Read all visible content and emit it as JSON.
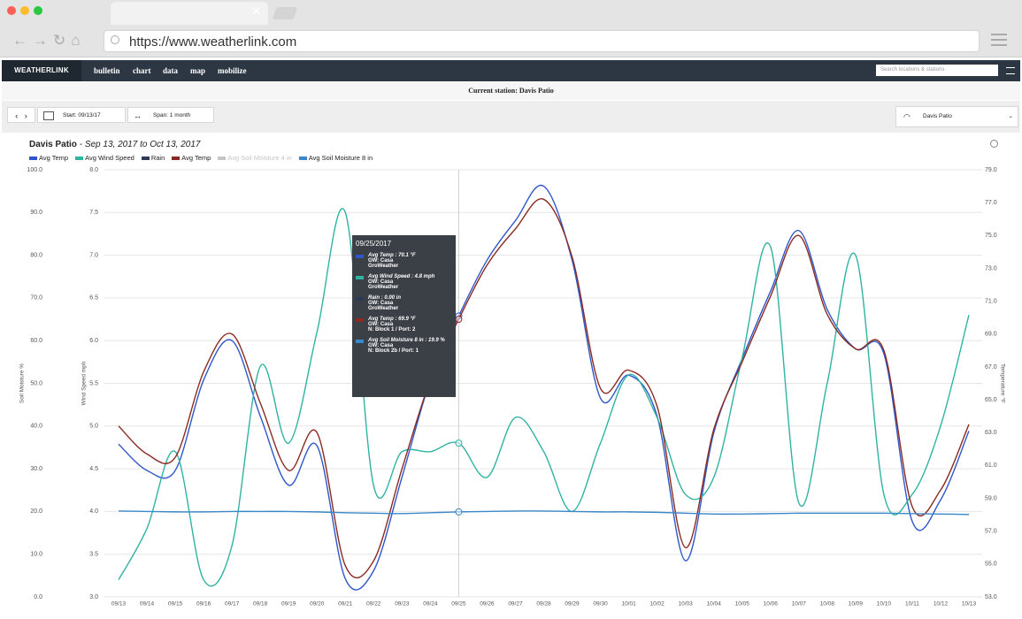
{
  "browser": {
    "url": "https://www.weatherlink.com"
  },
  "nav": {
    "brand": "WEATHERLINK",
    "links": [
      "bulletin",
      "chart",
      "data",
      "map",
      "mobilize"
    ],
    "search_placeholder": "Search locations & stations"
  },
  "station_bar": "Current station: Davis Patio",
  "controls": {
    "start": "Start: 09/13/17",
    "span": "Span: 1 month",
    "station": "Davis Patio"
  },
  "chart_data": {
    "type": "line",
    "title": "Davis Patio",
    "subtitle": "Sep 13, 2017 to Oct 13, 2017",
    "categories": [
      "09/13",
      "09/14",
      "09/15",
      "09/16",
      "09/17",
      "09/18",
      "09/19",
      "09/20",
      "09/21",
      "09/22",
      "09/23",
      "09/24",
      "09/25",
      "09/26",
      "09/27",
      "09/28",
      "09/29",
      "09/30",
      "10/01",
      "10/02",
      "10/03",
      "10/04",
      "10/05",
      "10/06",
      "10/07",
      "10/08",
      "10/09",
      "10/10",
      "10/11",
      "10/12",
      "10/13"
    ],
    "axes": [
      {
        "label": "Soil Moisture %",
        "side": "left-outer",
        "lim": [
          0,
          100
        ],
        "ticks": [
          {
            "value": 0,
            "label": "0.0"
          },
          {
            "value": 10,
            "label": "10.0"
          },
          {
            "value": 20,
            "label": "20.0"
          },
          {
            "value": 30,
            "label": "30.0"
          },
          {
            "value": 40,
            "label": "40.0"
          },
          {
            "value": 50,
            "label": "50.0"
          },
          {
            "value": 60,
            "label": "60.0"
          },
          {
            "value": 70,
            "label": "70.0"
          },
          {
            "value": 80,
            "label": "80.0"
          },
          {
            "value": 90,
            "label": "90.0"
          },
          {
            "value": 100,
            "label": "100.0"
          }
        ]
      },
      {
        "label": "Wind Speed mph",
        "side": "left-inner",
        "lim": [
          3,
          8
        ],
        "grid": true,
        "ticks": [
          {
            "value": 3,
            "label": "3.0"
          },
          3.5,
          {
            "value": 4,
            "label": "4.0"
          },
          4.5,
          {
            "value": 5,
            "label": "5.0"
          },
          5.5,
          {
            "value": 6,
            "label": "6.0"
          },
          6.5,
          {
            "value": 7,
            "label": "7.0"
          },
          7.5,
          {
            "value": 8,
            "label": "8.0"
          }
        ]
      },
      {
        "label": "Temperature °F",
        "side": "right",
        "lim": [
          53,
          79
        ],
        "ticks": [
          {
            "value": 53,
            "label": "53.0"
          },
          {
            "value": 55,
            "label": "55.0"
          },
          {
            "value": 57,
            "label": "57.0"
          },
          {
            "value": 59,
            "label": "59.0"
          },
          {
            "value": 61,
            "label": "61.0"
          },
          {
            "value": 63,
            "label": "63.0"
          },
          {
            "value": 65,
            "label": "65.0"
          },
          {
            "value": 67,
            "label": "67.0"
          },
          {
            "value": 69,
            "label": "69.0"
          },
          {
            "value": 71,
            "label": "71.0"
          },
          {
            "value": 73,
            "label": "73.0"
          },
          {
            "value": 75,
            "label": "75.0"
          },
          {
            "value": 77,
            "label": "77.0"
          },
          {
            "value": 79,
            "label": "79.0"
          }
        ]
      }
    ],
    "series": [
      {
        "name": "Avg Temp",
        "color": "#2f57c8",
        "axis": 2,
        "values": [
          62.3,
          60.7,
          60.7,
          66.2,
          68.6,
          64.0,
          59.8,
          62.2,
          54.1,
          54.6,
          60.3,
          66.2,
          70.1,
          73.5,
          75.9,
          78.0,
          73.5,
          65.1,
          66.5,
          64.0,
          55.2,
          63.0,
          67.5,
          71.6,
          75.3,
          70.5,
          68.1,
          67.8,
          57.6,
          58.9,
          63.1
        ]
      },
      {
        "name": "Avg Wind Speed",
        "color": "#2fb3a3",
        "axis": 1,
        "values": [
          3.2,
          3.8,
          4.7,
          3.2,
          3.6,
          5.7,
          4.8,
          6.1,
          7.5,
          4.3,
          4.7,
          4.7,
          4.8,
          4.4,
          5.1,
          4.7,
          4.0,
          4.8,
          5.6,
          5.1,
          4.2,
          4.4,
          5.8,
          7.1,
          4.1,
          5.5,
          7.0,
          4.2,
          4.2,
          5.0,
          6.3
        ]
      },
      {
        "name": "Rain",
        "color": "#2b3a55"
      },
      {
        "name": "Avg Temp",
        "color": "#8a2b22",
        "axis": 2,
        "values": [
          63.4,
          61.7,
          61.5,
          66.7,
          69.0,
          64.8,
          60.7,
          63.0,
          54.9,
          55.2,
          60.8,
          66.2,
          69.9,
          73.2,
          75.4,
          77.2,
          73.7,
          65.7,
          66.8,
          64.6,
          56.0,
          63.2,
          67.3,
          71.3,
          75.0,
          70.2,
          68.1,
          68.0,
          58.5,
          59.5,
          63.5
        ]
      },
      {
        "name": "Avg Soil Moisture 4 in",
        "color": "#c6c6c6",
        "hidden": true
      },
      {
        "name": "Avg Soil Moisture 8 in",
        "color": "#3b87c9",
        "axis": 0,
        "values": [
          20.1,
          20.0,
          19.9,
          19.9,
          20.0,
          20.0,
          20.0,
          19.9,
          19.7,
          19.6,
          19.5,
          19.7,
          19.9,
          20.0,
          20.1,
          20.1,
          20.0,
          19.9,
          19.9,
          19.8,
          19.6,
          19.4,
          19.4,
          19.5,
          19.6,
          19.6,
          19.6,
          19.6,
          19.5,
          19.4,
          19.3
        ]
      }
    ],
    "tooltip": {
      "title": "09/25/2017",
      "items": [
        {
          "label": "Avg Temp : 70.1 °F",
          "color": "#2f57c8",
          "details": [
            "GW: Casa",
            "GroWeather"
          ]
        },
        {
          "label": "Avg Wind Speed : 4.8 mph",
          "color": "#2fb3a3",
          "details": [
            "GW: Casa",
            "GroWeather"
          ]
        },
        {
          "label": "Rain : 0.00 in",
          "color": "#2b3a55",
          "details": [
            "GW: Casa",
            "GroWeather"
          ]
        },
        {
          "label": "Avg Temp : 69.9 °F",
          "color": "#8a2b22",
          "details": [
            "GW: Casa",
            "N: Block 1 / Port: 2"
          ]
        },
        {
          "label": "Avg Soil Moisture 8 in : 19.9 %",
          "color": "#3b87c9",
          "details": [
            "GW: Casa",
            "N: Block 2b / Port: 1"
          ]
        }
      ]
    }
  }
}
